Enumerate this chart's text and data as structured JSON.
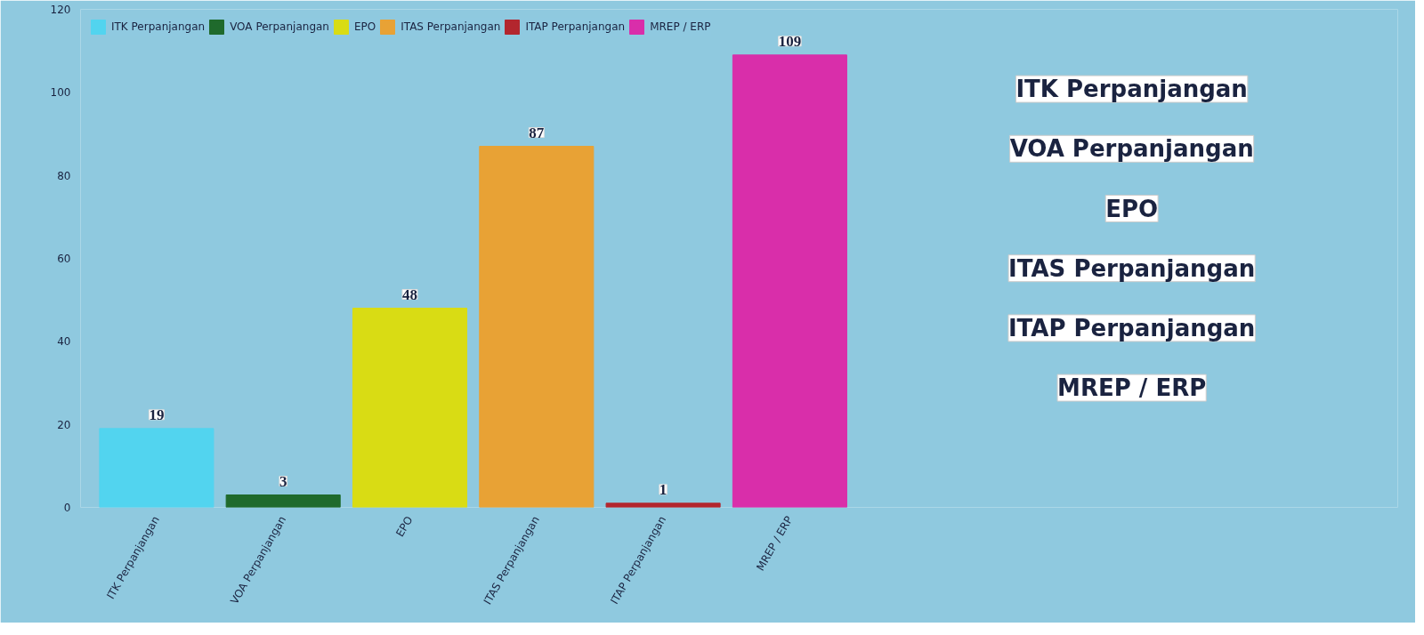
{
  "chart_data": [
    {
      "type": "bar",
      "categories": [
        "ITK Perpanjangan",
        "VOA Perpanjangan",
        "EPO",
        "ITAS Perpanjangan",
        "ITAP Perpanjangan",
        "MREP / ERP"
      ],
      "series": [
        {
          "name": "ITK Perpanjangan",
          "color": "#52d4ef",
          "values": [
            19,
            null,
            null,
            null,
            null,
            null
          ]
        },
        {
          "name": "VOA Perpanjangan",
          "color": "#1f6a2c",
          "values": [
            null,
            3,
            null,
            null,
            null,
            null
          ]
        },
        {
          "name": "EPO",
          "color": "#d9dc14",
          "values": [
            null,
            null,
            48,
            null,
            null,
            null
          ]
        },
        {
          "name": "ITAS Perpanjangan",
          "color": "#e8a235",
          "values": [
            null,
            null,
            null,
            87,
            null,
            null
          ]
        },
        {
          "name": "ITAP Perpanjangan",
          "color": "#b3262e",
          "values": [
            null,
            null,
            null,
            null,
            1,
            null
          ]
        },
        {
          "name": "MREP / ERP",
          "color": "#d92eaa",
          "values": [
            null,
            null,
            null,
            null,
            null,
            109
          ]
        }
      ],
      "ylim": [
        0,
        120
      ],
      "yticks": [
        0,
        20,
        40,
        60,
        80,
        100,
        120
      ],
      "grid": false,
      "legend": "top",
      "data_labels": true
    },
    {
      "type": "other",
      "annotations": [
        "ITK Perpanjangan",
        "VOA Perpanjangan",
        "EPO",
        "ITAS Perpanjangan",
        "ITAP Perpanjangan",
        "MREP / ERP"
      ]
    }
  ]
}
